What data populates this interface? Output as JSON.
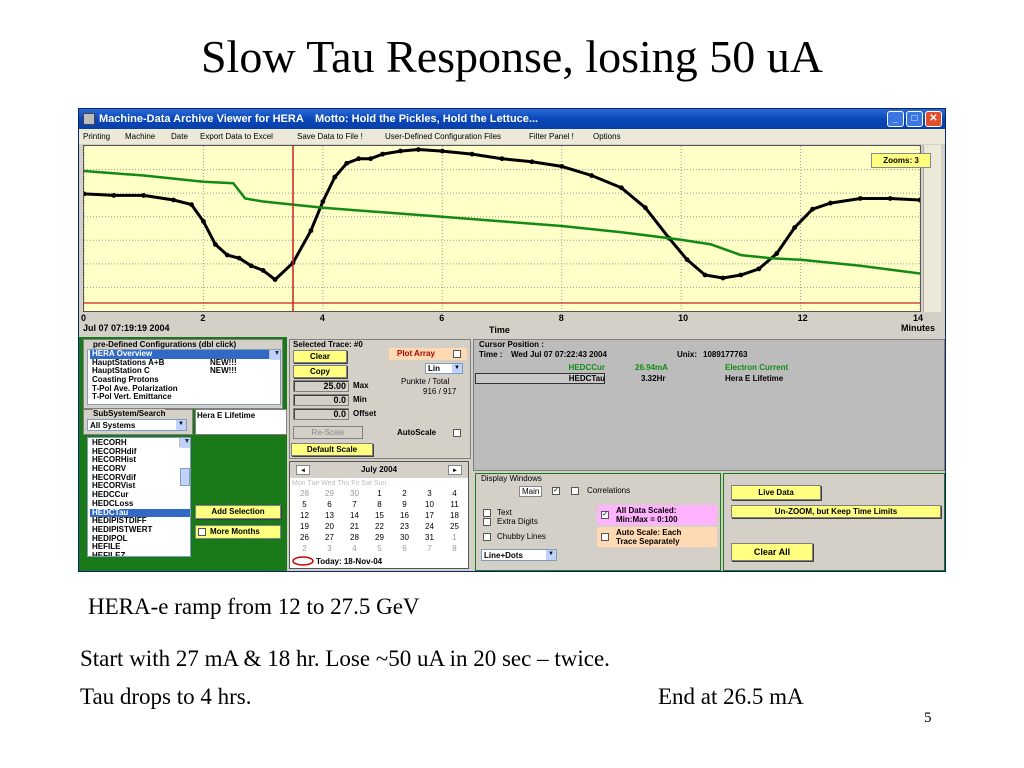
{
  "slide": {
    "title": "Slow Tau Response, losing 50 uA",
    "caption_1": "HERA-e  ramp from    12 to 27.5 GeV",
    "caption_2": "Start with 27 mA  & 18 hr. Lose ~50 uA in 20 sec – twice.",
    "caption_3a": "Tau drops to 4 hrs.",
    "caption_3b": "End at 26.5 mA",
    "page_number": "5"
  },
  "window": {
    "title": "Machine-Data Archive Viewer for HERA",
    "motto": "Motto: Hold the Pickles, Hold the Lettuce...",
    "menu": [
      "Printing",
      "Machine",
      "Date",
      "Export Data to Excel",
      "Save Data to File !",
      "User-Defined Configuration Files",
      "Filter Panel !",
      "Options"
    ]
  },
  "plot": {
    "zoom_label": "Zooms: 3",
    "x_ticks": [
      "0",
      "2",
      "4",
      "6",
      "8",
      "10",
      "12",
      "14"
    ],
    "start_date": "Jul 07 07:19:19 2004",
    "x_title": "Time",
    "x_unit": "Minutes",
    "cursor_x": 3.5,
    "xlim": [
      0,
      14
    ],
    "ylim": [
      0,
      1
    ],
    "colors": {
      "black_trace": "#000000",
      "green_trace": "#138a13",
      "cursor": "#cc2020",
      "background": "#ffffc8"
    }
  },
  "chart_data": {
    "type": "line",
    "series": [
      {
        "color": "#000000",
        "x": [
          0,
          0.5,
          1,
          1.5,
          1.8,
          2.0,
          2.2,
          2.4,
          2.6,
          2.8,
          3.0,
          3.2,
          3.5,
          3.8,
          4.0,
          4.2,
          4.4,
          4.6,
          4.8,
          5.0,
          5.3,
          5.6,
          6.0,
          6.5,
          7.0,
          7.5,
          8.0,
          8.5,
          9.0,
          9.4,
          9.8,
          10.1,
          10.4,
          10.7,
          11.0,
          11.3,
          11.6,
          11.9,
          12.2,
          12.5,
          13.0,
          13.5,
          14.0
        ],
        "y": [
          0.7,
          0.69,
          0.69,
          0.66,
          0.63,
          0.52,
          0.37,
          0.3,
          0.28,
          0.23,
          0.2,
          0.14,
          0.25,
          0.46,
          0.65,
          0.81,
          0.9,
          0.93,
          0.93,
          0.96,
          0.98,
          0.99,
          0.98,
          0.96,
          0.93,
          0.91,
          0.88,
          0.82,
          0.74,
          0.61,
          0.41,
          0.27,
          0.17,
          0.15,
          0.17,
          0.21,
          0.31,
          0.48,
          0.6,
          0.64,
          0.67,
          0.67,
          0.66
        ]
      },
      {
        "color": "#138a13",
        "x": [
          0,
          1.0,
          2.0,
          2.5,
          2.7,
          3.0,
          4.0,
          5.0,
          6.0,
          7.0,
          8.0,
          9.0,
          10.0,
          10.5,
          11.0,
          11.5,
          12.0,
          13.0,
          14.0
        ],
        "y": [
          0.85,
          0.82,
          0.78,
          0.77,
          0.67,
          0.65,
          0.61,
          0.58,
          0.55,
          0.52,
          0.49,
          0.45,
          0.4,
          0.37,
          0.3,
          0.28,
          0.27,
          0.23,
          0.18
        ]
      }
    ]
  },
  "config": {
    "title": "pre-Defined Configurations (dbl click)",
    "items": [
      {
        "name": "HERA Overview",
        "tag": "",
        "selected": true
      },
      {
        "name": "HauptStations A+B",
        "tag": "NEW!!!",
        "selected": false
      },
      {
        "name": "HauptStation C",
        "tag": "NEW!!!",
        "selected": false
      },
      {
        "name": "Coasting Protons",
        "tag": "",
        "selected": false
      },
      {
        "name": "T-Pol Ave. Polarization",
        "tag": "",
        "selected": false
      },
      {
        "name": "T-Pol Vert. Emittance",
        "tag": "",
        "selected": false
      }
    ]
  },
  "subsystem": {
    "title": "SubSystem/Search",
    "value": "All Systems",
    "lifetime_label": "Hera E Lifetime"
  },
  "signals": {
    "items": [
      "HECORH",
      "HECORHdif",
      "HECORHist",
      "HECORV",
      "HECORVdif",
      "HECORVist",
      "HEDCCur",
      "HEDCLoss",
      "HEDCTau",
      "HEDIPISTDIFF",
      "HEDIPISTWERT",
      "HEDIPOL",
      "HEFILE",
      "HEFILEZ"
    ],
    "selected": "HEDCTau",
    "add_button": "Add Selection",
    "more_months": "More Months"
  },
  "trace": {
    "title": "Selected Trace: #0",
    "clear": "Clear",
    "copy": "Copy",
    "plot_array": "Plot Array",
    "scale_mode": "Lin",
    "punkte_label": "Punkte / Total",
    "punkte_value": "916 / 917",
    "max_value": "25.00",
    "max_label": "Max",
    "min_value": "0.0",
    "min_label": "Min",
    "offset_value": "0.0",
    "offset_label": "Offset",
    "rescale": "Re-Scale",
    "autoscale": "AutoScale",
    "default_scale": "Default Scale"
  },
  "calendar": {
    "month": "July 2004",
    "prev": "◄",
    "next": "►",
    "dow": "Mon Tue Wed Thu Fri Sat Sun",
    "weeks": [
      [
        "28",
        "29",
        "30",
        "1",
        "2",
        "3",
        "4"
      ],
      [
        "5",
        "6",
        "7",
        "8",
        "9",
        "10",
        "11"
      ],
      [
        "12",
        "13",
        "14",
        "15",
        "16",
        "17",
        "18"
      ],
      [
        "19",
        "20",
        "21",
        "22",
        "23",
        "24",
        "25"
      ],
      [
        "26",
        "27",
        "28",
        "29",
        "30",
        "31",
        "1"
      ],
      [
        "2",
        "3",
        "4",
        "5",
        "6",
        "7",
        "8"
      ]
    ],
    "today": "Today: 18-Nov-04"
  },
  "cursor": {
    "title": "Cursor Position :",
    "time_label": "Time :",
    "time_value": "Wed Jul 07 07:22:43 2004",
    "unix_label": "Unix:",
    "unix_value": "1089177763",
    "rows": [
      {
        "signal": "HEDCCur",
        "value": "26.94mA",
        "desc": "Electron Current",
        "color": "#138a13"
      },
      {
        "signal": "HEDCTau",
        "value": "3.32Hr",
        "desc": "Hera E Lifetime",
        "color": "#000000"
      }
    ]
  },
  "display": {
    "title": "Display Windows",
    "main": "Main",
    "correlations": "Correlations",
    "text": "Text",
    "extra_digits": "Extra Digits",
    "chubby_lines": "Chubby Lines",
    "all_data_scaled": "All Data Scaled:",
    "min_max": "Min:Max = 0:100",
    "auto_scale": "Auto Scale: Each",
    "trace_separately": "Trace Separately",
    "line_style": "Line+Dots"
  },
  "actions": {
    "live_data": "Live Data",
    "unzoom": "Un-ZOOM, but Keep Time Limits",
    "clear_all": "Clear All"
  }
}
